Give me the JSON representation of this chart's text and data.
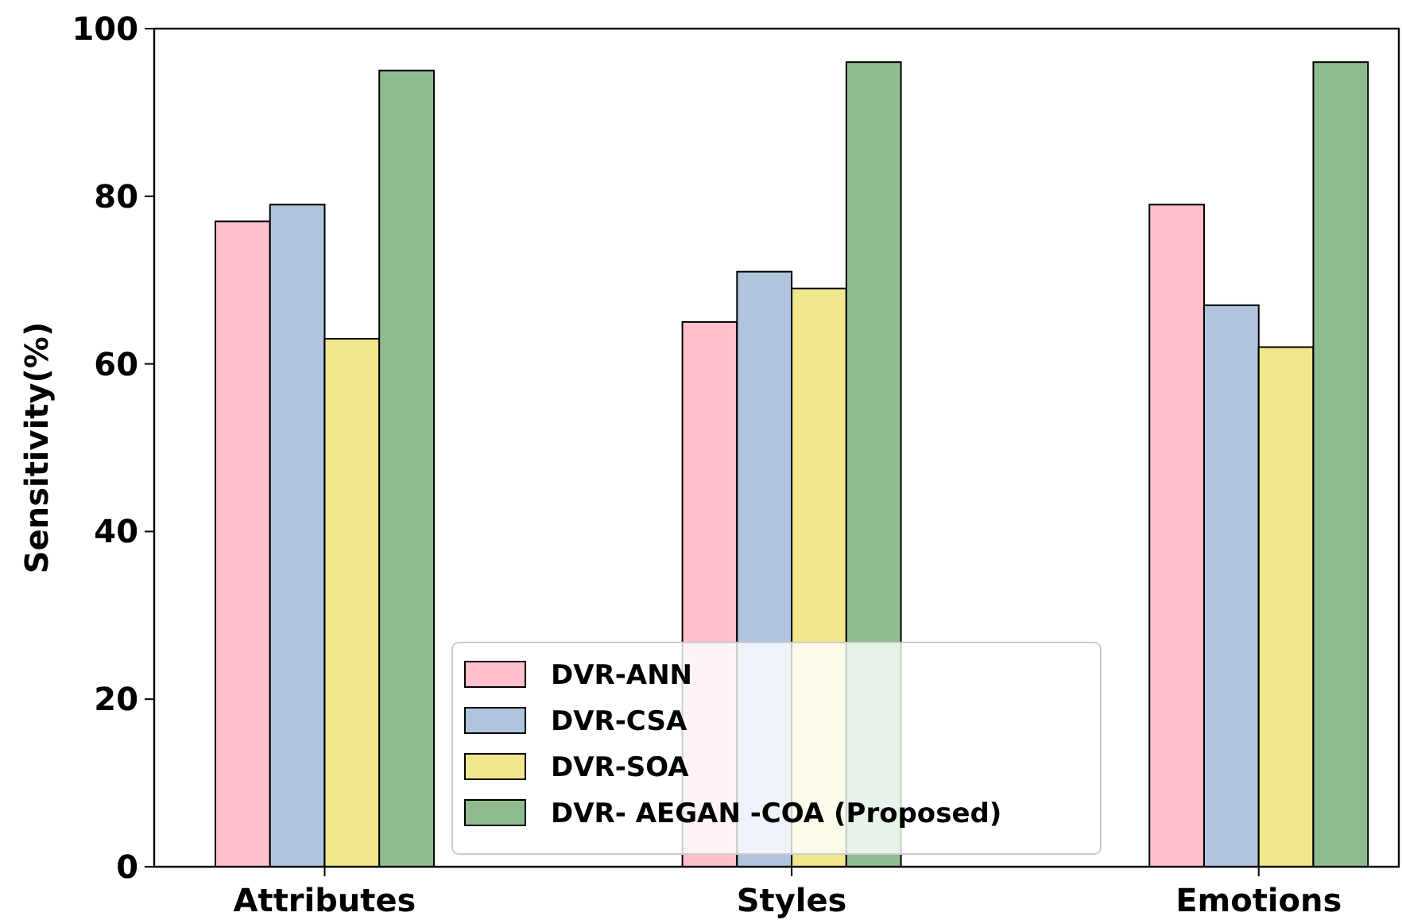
{
  "chart_data": {
    "type": "bar",
    "ylabel": "Sensitivity(%)",
    "categories": [
      "Attributes",
      "Styles",
      "Emotions"
    ],
    "series": [
      {
        "name": "DVR-ANN",
        "color": "#ffc0cb",
        "values": [
          77,
          65,
          79
        ]
      },
      {
        "name": "DVR-CSA",
        "color": "#b0c4de",
        "values": [
          79,
          71,
          67
        ]
      },
      {
        "name": "DVR-SOA",
        "color": "#f0e68c",
        "values": [
          63,
          69,
          62
        ]
      },
      {
        "name": "DVR- AEGAN -COA (Proposed)",
        "color": "#8fbc8f",
        "values": [
          95,
          96,
          96
        ]
      }
    ],
    "ylim": [
      0,
      100
    ],
    "yticks": [
      0,
      20,
      40,
      60,
      80,
      100
    ],
    "legend": "bottom",
    "grid": false
  }
}
